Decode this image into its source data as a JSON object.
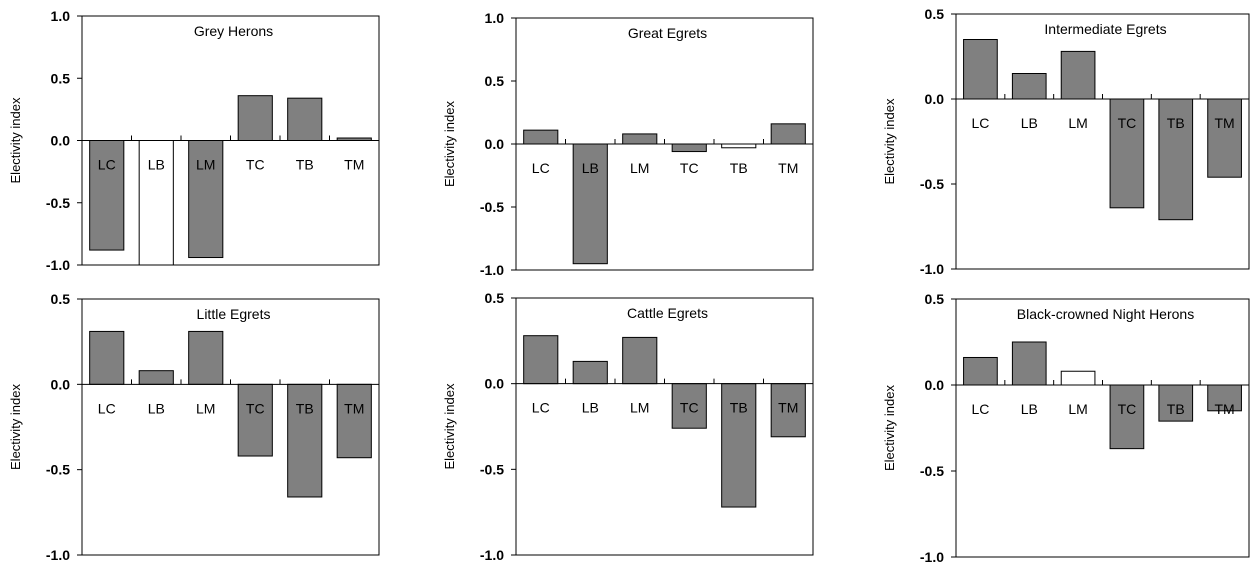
{
  "figure": {
    "ylabel": "Electivity index",
    "categories": [
      "LC",
      "LB",
      "LM",
      "TC",
      "TB",
      "TM"
    ],
    "colors": {
      "dark_bar": "#808080",
      "light_bar": "#ffffff",
      "outline": "#000000"
    }
  },
  "chart_data": [
    {
      "type": "bar",
      "title": "Grey Herons",
      "ylabel": "Electivity index",
      "categories": [
        "LC",
        "LB",
        "LM",
        "TC",
        "TB",
        "TM"
      ],
      "values": [
        -0.88,
        -1.0,
        -0.94,
        0.36,
        0.34,
        0.02
      ],
      "fills": [
        "dark",
        "light",
        "dark",
        "dark",
        "dark",
        "dark"
      ],
      "ylim": [
        -1.0,
        1.0
      ],
      "yticks": [
        1.0,
        0.5,
        0.0,
        -0.5,
        -1.0
      ],
      "ytick_labels": [
        "1.0",
        "0.5",
        "0.0",
        "-0.5",
        "-1.0"
      ],
      "grid": false
    },
    {
      "type": "bar",
      "title": "Great Egrets",
      "ylabel": "Electivity index",
      "categories": [
        "LC",
        "LB",
        "LM",
        "TC",
        "TB",
        "TM"
      ],
      "values": [
        0.11,
        -0.95,
        0.08,
        -0.06,
        -0.03,
        0.16
      ],
      "fills": [
        "dark",
        "dark",
        "dark",
        "dark",
        "light",
        "dark"
      ],
      "ylim": [
        -1.0,
        1.0
      ],
      "yticks": [
        1.0,
        0.5,
        0.0,
        -0.5,
        -1.0
      ],
      "ytick_labels": [
        "1.0",
        "0.5",
        "0.0",
        "-0.5",
        "-1.0"
      ],
      "grid": false
    },
    {
      "type": "bar",
      "title": "Intermediate Egrets",
      "ylabel": "Electivity index",
      "categories": [
        "LC",
        "LB",
        "LM",
        "TC",
        "TB",
        "TM"
      ],
      "values": [
        0.35,
        0.15,
        0.28,
        -0.64,
        -0.71,
        -0.46
      ],
      "fills": [
        "dark",
        "dark",
        "dark",
        "dark",
        "dark",
        "dark"
      ],
      "ylim": [
        -1.0,
        0.5
      ],
      "yticks": [
        0.5,
        0.0,
        -0.5,
        -1.0
      ],
      "ytick_labels": [
        "0.5",
        "0.0",
        "-0.5",
        "-1.0"
      ],
      "grid": false
    },
    {
      "type": "bar",
      "title": "Little Egrets",
      "ylabel": "Electivity index",
      "categories": [
        "LC",
        "LB",
        "LM",
        "TC",
        "TB",
        "TM"
      ],
      "values": [
        0.31,
        0.08,
        0.31,
        -0.42,
        -0.66,
        -0.43
      ],
      "fills": [
        "dark",
        "dark",
        "dark",
        "dark",
        "dark",
        "dark"
      ],
      "ylim": [
        -1.0,
        0.5
      ],
      "yticks": [
        0.5,
        0.0,
        -0.5,
        -1.0
      ],
      "ytick_labels": [
        "0.5",
        "0.0",
        "-0.5",
        "-1.0"
      ],
      "grid": false
    },
    {
      "type": "bar",
      "title": "Cattle Egrets",
      "ylabel": "Electivity index",
      "categories": [
        "LC",
        "LB",
        "LM",
        "TC",
        "TB",
        "TM"
      ],
      "values": [
        0.28,
        0.13,
        0.27,
        -0.26,
        -0.72,
        -0.31
      ],
      "fills": [
        "dark",
        "dark",
        "dark",
        "dark",
        "dark",
        "dark"
      ],
      "ylim": [
        -1.0,
        0.5
      ],
      "yticks": [
        0.5,
        0.0,
        -0.5,
        -1.0
      ],
      "ytick_labels": [
        "0.5",
        "0.0",
        "-0.5",
        "-1.0"
      ],
      "grid": false
    },
    {
      "type": "bar",
      "title": "Black-crowned Night Herons",
      "ylabel": "Electivity index",
      "categories": [
        "LC",
        "LB",
        "LM",
        "TC",
        "TB",
        "TM"
      ],
      "values": [
        0.16,
        0.25,
        0.08,
        -0.37,
        -0.21,
        -0.15
      ],
      "fills": [
        "dark",
        "dark",
        "light",
        "dark",
        "dark",
        "dark"
      ],
      "ylim": [
        -1.0,
        0.5
      ],
      "yticks": [
        0.5,
        0.0,
        -0.5,
        -1.0
      ],
      "ytick_labels": [
        "0.5",
        "0.0",
        "-0.5",
        "-1.0"
      ],
      "grid": false
    }
  ]
}
